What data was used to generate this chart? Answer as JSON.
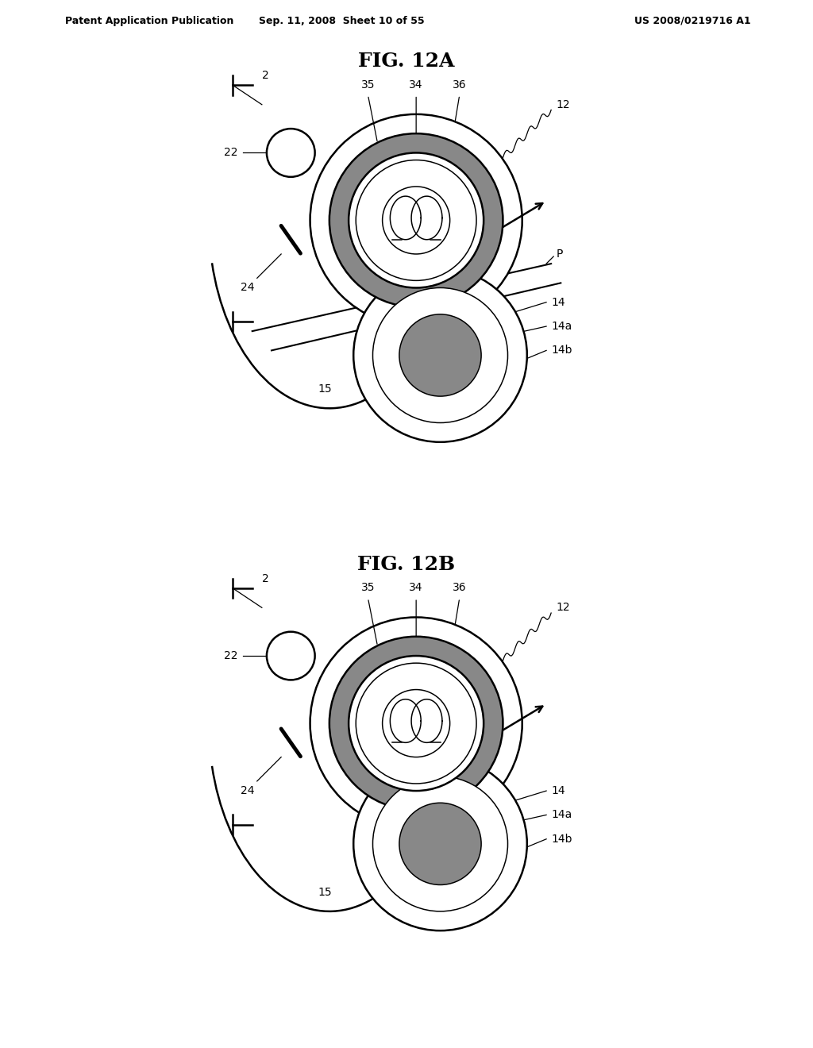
{
  "header_left": "Patent Application Publication",
  "header_mid": "Sep. 11, 2008  Sheet 10 of 55",
  "header_right": "US 2008/0219716 A1",
  "fig_title_A": "FIG. 12A",
  "fig_title_B": "FIG. 12B",
  "bg_color": "#ffffff",
  "line_color": "#000000",
  "gray_dark": "#888888",
  "gray_light": "#cccccc"
}
